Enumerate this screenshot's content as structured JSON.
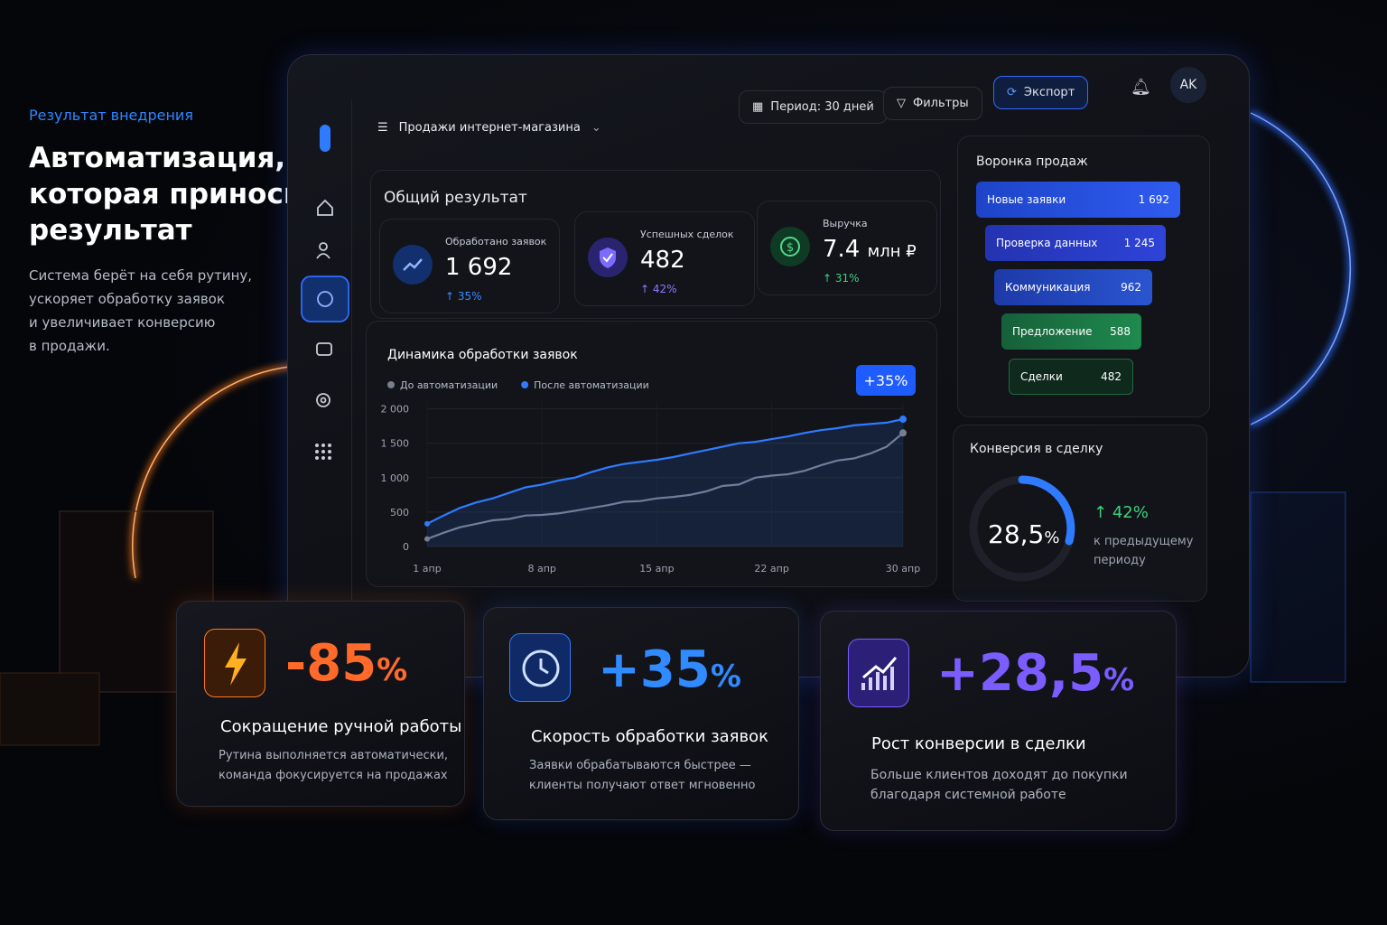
{
  "hero": {
    "eyebrow": "Результат внедрения",
    "title_lines": [
      "Автоматизация,",
      "которая приносит",
      "результат"
    ],
    "description_lines": [
      "Система берёт на себя рутину,",
      "ускоряет обработку заявок",
      "и увеличивает конверсию",
      "в продажи."
    ]
  },
  "topbar": {
    "menu_title": "Продажи интернет-магазина",
    "period": "Период: 30 дней",
    "filters": "Фильтры",
    "export": "Экспорт",
    "avatar": "AK"
  },
  "summary": {
    "title": "Общий результат",
    "kpis": [
      {
        "label": "Обработано заявок",
        "value": "1 692",
        "change": "35%"
      },
      {
        "label": "Успешных сделок",
        "value": "482",
        "change": "42%"
      },
      {
        "label": "Выручка",
        "value": "7.4",
        "unit": "млн ₽",
        "change": "31%"
      }
    ]
  },
  "chart_data": {
    "type": "line",
    "title": "Динамика обработки заявок",
    "annotation": "+35%",
    "categories": [
      "1 апр",
      null,
      null,
      null,
      null,
      null,
      null,
      "8 апр",
      null,
      null,
      null,
      null,
      null,
      null,
      "15 апр",
      null,
      null,
      null,
      null,
      null,
      null,
      "22 апр",
      null,
      null,
      null,
      null,
      null,
      null,
      null,
      "30 апр"
    ],
    "series": [
      {
        "name": "До автоматизации",
        "color": "#7a7f8c",
        "values": [
          110,
          200,
          280,
          330,
          380,
          400,
          450,
          460,
          480,
          520,
          560,
          600,
          650,
          660,
          700,
          720,
          750,
          800,
          880,
          900,
          1000,
          1030,
          1050,
          1100,
          1180,
          1250,
          1280,
          1350,
          1450,
          1650
        ]
      },
      {
        "name": "После автоматизации",
        "color": "#2f7bff",
        "values": [
          330,
          450,
          560,
          640,
          700,
          780,
          860,
          900,
          960,
          1000,
          1080,
          1150,
          1200,
          1230,
          1260,
          1300,
          1350,
          1400,
          1450,
          1500,
          1520,
          1560,
          1600,
          1650,
          1690,
          1720,
          1760,
          1780,
          1800,
          1850
        ]
      }
    ],
    "ylim": [
      0,
      2100
    ],
    "yticks": [
      0,
      500,
      {
        "value": 1000,
        "label": "1 000"
      },
      {
        "value": 1500,
        "label": "1 500"
      },
      {
        "value": 2000,
        "label": "2 000"
      }
    ],
    "grid": true
  },
  "funnel": {
    "title": "Воронка продаж",
    "stages": [
      {
        "label": "Новые заявки",
        "value": "1 692"
      },
      {
        "label": "Проверка данных",
        "value": "1 245"
      },
      {
        "label": "Коммуникация",
        "value": "962"
      },
      {
        "label": "Предложение",
        "value": "588"
      },
      {
        "label": "Сделки",
        "value": "482"
      }
    ]
  },
  "conversion": {
    "title": "Конверсия в сделку",
    "value": "28,5",
    "unit": "%",
    "change": "42%",
    "note_lines": [
      "к предыдущему",
      "периоду"
    ]
  },
  "cards": [
    {
      "value": "-85",
      "unit": "%",
      "title": "Сокращение ручной работы",
      "lines": [
        "Рутина выполняется автоматически,",
        "команда фокусируется на продажах"
      ]
    },
    {
      "value": "+35",
      "unit": "%",
      "title": "Скорость обработки заявок",
      "lines": [
        "Заявки обрабатываются быстрее —",
        "клиенты получают ответ мгновенно"
      ]
    },
    {
      "value": "+28,5",
      "unit": "%",
      "title": "Рост конверсии в сделки",
      "lines": [
        "Больше клиентов доходят до покупки",
        "благодаря системной работе"
      ]
    }
  ]
}
